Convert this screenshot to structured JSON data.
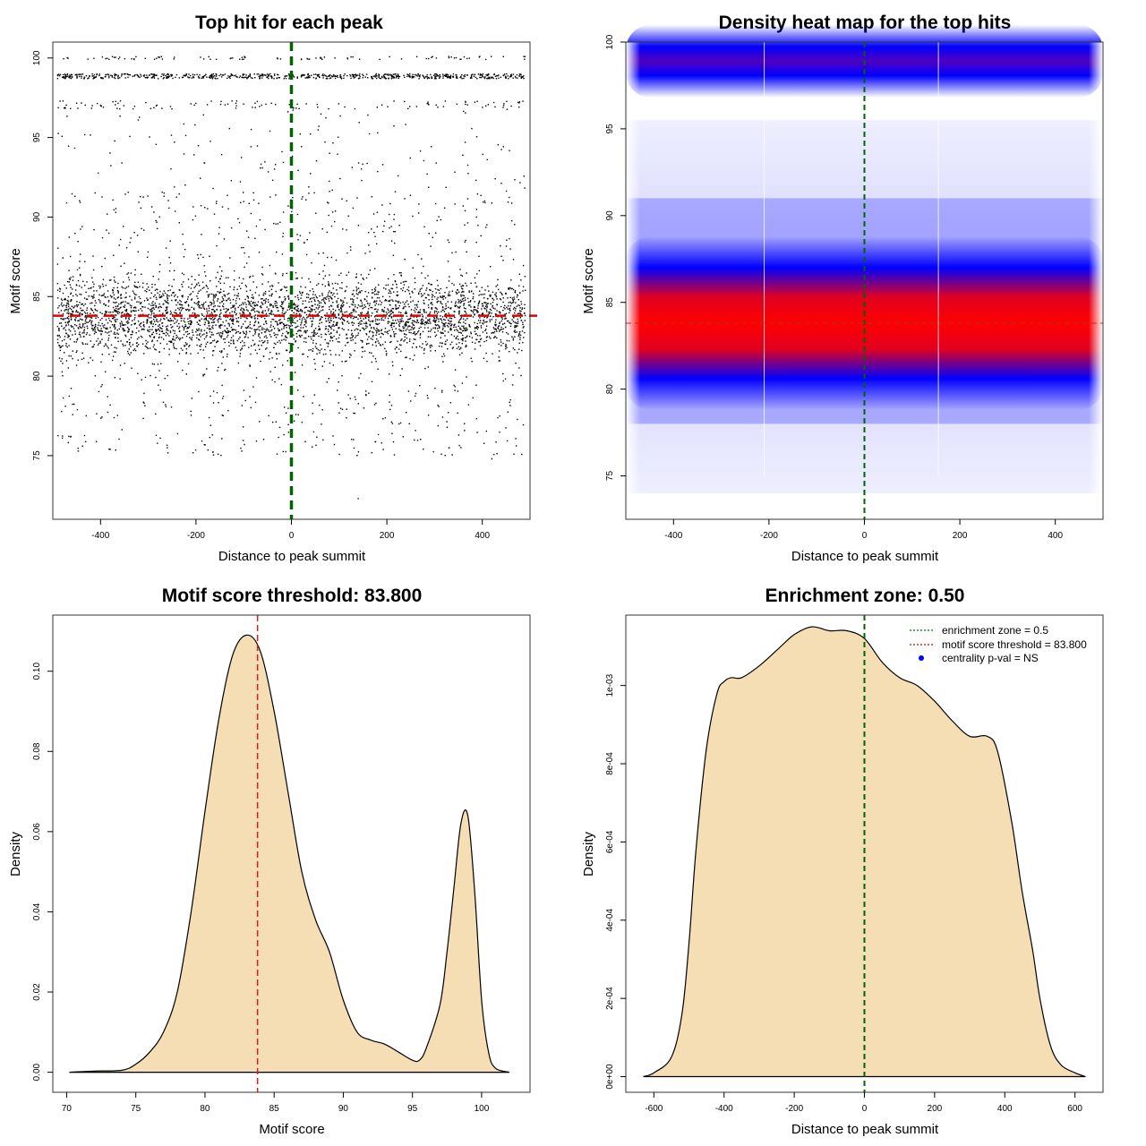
{
  "colors": {
    "sample": "#000000",
    "threshold": "#e00000",
    "zone": "#006400",
    "density_fill": "#f5deb3",
    "heat_low": "#0000ff",
    "heat_high": "#ff0000"
  },
  "chart_data": [
    {
      "id": "scatter",
      "type": "scatter",
      "title": "Top hit for each peak",
      "xlabel": "Distance to peak summit",
      "ylabel": "Motif score",
      "xlim": [
        -500,
        500
      ],
      "ylim": [
        71,
        101
      ],
      "xticks": [
        -400,
        -200,
        0,
        200,
        400
      ],
      "yticks": [
        75,
        80,
        85,
        90,
        95,
        100
      ],
      "xtick_labels": [
        "-400",
        "-200",
        "0",
        "200",
        "400"
      ],
      "ytick_labels": [
        "75",
        "80",
        "85",
        "90",
        "95",
        "100"
      ],
      "zone_x": 0,
      "threshold_y": 83.8,
      "point_groups": [
        {
          "y_min": 79.5,
          "y_max": 88,
          "count": 3400
        },
        {
          "y_min": 75,
          "y_max": 92,
          "count": 900
        },
        {
          "y_min": 92,
          "y_max": 97,
          "count": 120
        },
        {
          "y_min": 96.8,
          "y_max": 97.3,
          "count": 110
        },
        {
          "y_min": 98.7,
          "y_max": 99.0,
          "count": 700
        },
        {
          "y_min": 99.9,
          "y_max": 100.1,
          "count": 90
        }
      ]
    },
    {
      "id": "heatmap",
      "type": "heatmap",
      "title": "Density heat map for the top hits",
      "xlabel": "Distance to peak summit",
      "ylabel": "Motif score",
      "xlim": [
        -500,
        500
      ],
      "ylim": [
        72.5,
        100
      ],
      "xticks": [
        -400,
        -200,
        0,
        200,
        400
      ],
      "yticks": [
        75,
        80,
        85,
        90,
        95,
        100
      ],
      "xtick_labels": [
        "-400",
        "-200",
        "0",
        "200",
        "400"
      ],
      "ytick_labels": [
        "75",
        "80",
        "85",
        "90",
        "95",
        "100"
      ],
      "zone_x": 0,
      "threshold_y": 83.8,
      "bands": [
        {
          "center": 83.8,
          "height": 6.0,
          "level": "high"
        },
        {
          "center": 98.9,
          "height": 3.0,
          "level": "low"
        }
      ]
    },
    {
      "id": "score_density",
      "type": "area",
      "title": "Motif score threshold: 83.800",
      "xlabel": "Motif score",
      "ylabel": "Density",
      "xlim": [
        69,
        103.5
      ],
      "ylim": [
        -0.005,
        0.114
      ],
      "xticks": [
        70,
        75,
        80,
        85,
        90,
        95,
        100
      ],
      "yticks": [
        0,
        0.02,
        0.04,
        0.06,
        0.08,
        0.1
      ],
      "xtick_labels": [
        "70",
        "75",
        "80",
        "85",
        "90",
        "95",
        "100"
      ],
      "ytick_labels": [
        "0.00",
        "0.02",
        "0.04",
        "0.06",
        "0.08",
        "0.10"
      ],
      "threshold_x": 83.8,
      "x": [
        70.2,
        72,
        74,
        75,
        76,
        77,
        78,
        79,
        80,
        81,
        82,
        83,
        84,
        85,
        86,
        87,
        88,
        89,
        90,
        91,
        92,
        93,
        94,
        95,
        95.5,
        96,
        97,
        97.5,
        98,
        98.5,
        99,
        99.5,
        100,
        100.5,
        101,
        102
      ],
      "y": [
        0,
        0.0003,
        0.0005,
        0.002,
        0.005,
        0.01,
        0.02,
        0.04,
        0.065,
        0.088,
        0.104,
        0.109,
        0.105,
        0.09,
        0.07,
        0.05,
        0.038,
        0.03,
        0.018,
        0.01,
        0.008,
        0.007,
        0.005,
        0.003,
        0.003,
        0.006,
        0.017,
        0.03,
        0.046,
        0.062,
        0.064,
        0.045,
        0.018,
        0.005,
        0.001,
        0
      ]
    },
    {
      "id": "distance_density",
      "type": "area",
      "title": "Enrichment zone: 0.50",
      "xlabel": "Distance to peak summit",
      "ylabel": "Density",
      "xlim": [
        -680,
        680
      ],
      "ylim": [
        -4e-05,
        0.00118
      ],
      "xticks": [
        -600,
        -400,
        -200,
        0,
        200,
        400,
        600
      ],
      "yticks": [
        0,
        0.0002,
        0.0004,
        0.0006,
        0.0008,
        0.001
      ],
      "xtick_labels": [
        "-600",
        "-400",
        "-200",
        "0",
        "200",
        "400",
        "600"
      ],
      "ytick_labels": [
        "0e+00",
        "2e-04",
        "4e-04",
        "6e-04",
        "8e-04",
        "1e-03"
      ],
      "zone_x": 0,
      "x": [
        -630,
        -600,
        -550,
        -520,
        -500,
        -480,
        -450,
        -420,
        -400,
        -380,
        -350,
        -300,
        -250,
        -200,
        -150,
        -100,
        -50,
        0,
        50,
        100,
        150,
        200,
        250,
        300,
        350,
        380,
        420,
        450,
        480,
        500,
        530,
        560,
        600,
        630
      ],
      "y": [
        0,
        1e-05,
        5e-05,
        0.00016,
        0.00034,
        0.00058,
        0.00084,
        0.00098,
        0.00101,
        0.00102,
        0.00102,
        0.00105,
        0.00109,
        0.00113,
        0.00115,
        0.00114,
        0.00114,
        0.00112,
        0.00106,
        0.00102,
        0.001,
        0.00096,
        0.00091,
        0.00087,
        0.00087,
        0.00083,
        0.00065,
        0.00047,
        0.00032,
        0.0002,
        8e-05,
        3e-05,
        1e-05,
        0
      ],
      "legend": {
        "position": "top-right",
        "entries": [
          {
            "label": "enrichment zone = 0.5",
            "style": "dotted",
            "color": "#008000"
          },
          {
            "label": "motif score threshold = 83.800",
            "style": "dotted",
            "color": "#e00000"
          },
          {
            "label": "centrality p-val = NS",
            "style": "point",
            "color": "#0000ff"
          }
        ]
      }
    }
  ]
}
